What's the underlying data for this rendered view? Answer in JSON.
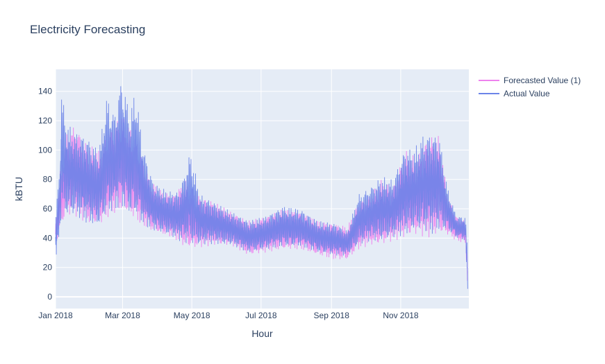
{
  "title": "Electricity Forecasting",
  "chart_data": {
    "type": "line",
    "title": "Electricity Forecasting",
    "xlabel": "Hour",
    "ylabel": "kBTU",
    "x_range": [
      "2018-01-01",
      "2018-12-31"
    ],
    "ylim": [
      -8,
      155
    ],
    "x_ticks": [
      {
        "date": "2018-01-01",
        "label": "Jan 2018"
      },
      {
        "date": "2018-03-01",
        "label": "Mar 2018"
      },
      {
        "date": "2018-05-01",
        "label": "May 2018"
      },
      {
        "date": "2018-07-01",
        "label": "Jul 2018"
      },
      {
        "date": "2018-09-01",
        "label": "Sep 2018"
      },
      {
        "date": "2018-11-01",
        "label": "Nov 2018"
      }
    ],
    "y_ticks": [
      0,
      20,
      40,
      60,
      80,
      100,
      120,
      140
    ],
    "grid": true,
    "legend_position": "top-right",
    "series": [
      {
        "name": "Forecasted Value (1)",
        "color": "#ee82ee",
        "points": [
          {
            "date": "2018-01-01",
            "low": 35,
            "high": 50
          },
          {
            "date": "2018-01-05",
            "low": 45,
            "high": 85
          },
          {
            "date": "2018-01-10",
            "low": 55,
            "high": 110
          },
          {
            "date": "2018-01-18",
            "low": 55,
            "high": 118
          },
          {
            "date": "2018-01-28",
            "low": 50,
            "high": 105
          },
          {
            "date": "2018-02-08",
            "low": 48,
            "high": 100
          },
          {
            "date": "2018-02-18",
            "low": 55,
            "high": 115
          },
          {
            "date": "2018-02-28",
            "low": 58,
            "high": 125
          },
          {
            "date": "2018-03-08",
            "low": 55,
            "high": 115
          },
          {
            "date": "2018-03-15",
            "low": 50,
            "high": 105
          },
          {
            "date": "2018-03-25",
            "low": 45,
            "high": 80
          },
          {
            "date": "2018-04-05",
            "low": 42,
            "high": 72
          },
          {
            "date": "2018-04-15",
            "low": 40,
            "high": 70
          },
          {
            "date": "2018-04-25",
            "low": 33,
            "high": 80
          },
          {
            "date": "2018-05-05",
            "low": 33,
            "high": 70
          },
          {
            "date": "2018-05-20",
            "low": 35,
            "high": 65
          },
          {
            "date": "2018-06-05",
            "low": 35,
            "high": 58
          },
          {
            "date": "2018-06-20",
            "low": 28,
            "high": 52
          },
          {
            "date": "2018-07-05",
            "low": 30,
            "high": 55
          },
          {
            "date": "2018-07-20",
            "low": 32,
            "high": 60
          },
          {
            "date": "2018-08-05",
            "low": 32,
            "high": 58
          },
          {
            "date": "2018-08-20",
            "low": 28,
            "high": 52
          },
          {
            "date": "2018-09-05",
            "low": 25,
            "high": 50
          },
          {
            "date": "2018-09-15",
            "low": 25,
            "high": 48
          },
          {
            "date": "2018-09-25",
            "low": 32,
            "high": 65
          },
          {
            "date": "2018-10-05",
            "low": 35,
            "high": 70
          },
          {
            "date": "2018-10-15",
            "low": 35,
            "high": 80
          },
          {
            "date": "2018-10-25",
            "low": 38,
            "high": 75
          },
          {
            "date": "2018-11-05",
            "low": 40,
            "high": 100
          },
          {
            "date": "2018-11-15",
            "low": 42,
            "high": 95
          },
          {
            "date": "2018-11-25",
            "low": 40,
            "high": 110
          },
          {
            "date": "2018-12-05",
            "low": 42,
            "high": 110
          },
          {
            "date": "2018-12-12",
            "low": 42,
            "high": 70
          },
          {
            "date": "2018-12-20",
            "low": 38,
            "high": 55
          },
          {
            "date": "2018-12-28",
            "low": 36,
            "high": 52
          },
          {
            "date": "2018-12-30",
            "low": 5,
            "high": 28
          }
        ]
      },
      {
        "name": "Actual Value",
        "color": "#6b84e8",
        "points": [
          {
            "date": "2018-01-01",
            "low": 20,
            "high": 55
          },
          {
            "date": "2018-01-05",
            "low": 45,
            "high": 95
          },
          {
            "date": "2018-01-06",
            "low": 55,
            "high": 144
          },
          {
            "date": "2018-01-10",
            "low": 55,
            "high": 120
          },
          {
            "date": "2018-01-18",
            "low": 55,
            "high": 112
          },
          {
            "date": "2018-01-28",
            "low": 50,
            "high": 110
          },
          {
            "date": "2018-02-08",
            "low": 48,
            "high": 100
          },
          {
            "date": "2018-02-15",
            "low": 55,
            "high": 137
          },
          {
            "date": "2018-02-22",
            "low": 58,
            "high": 125
          },
          {
            "date": "2018-02-28",
            "low": 60,
            "high": 150
          },
          {
            "date": "2018-03-08",
            "low": 55,
            "high": 125
          },
          {
            "date": "2018-03-12",
            "low": 55,
            "high": 143
          },
          {
            "date": "2018-03-20",
            "low": 48,
            "high": 100
          },
          {
            "date": "2018-03-28",
            "low": 45,
            "high": 78
          },
          {
            "date": "2018-04-10",
            "low": 42,
            "high": 72
          },
          {
            "date": "2018-04-20",
            "low": 38,
            "high": 72
          },
          {
            "date": "2018-04-30",
            "low": 35,
            "high": 100
          },
          {
            "date": "2018-05-08",
            "low": 35,
            "high": 70
          },
          {
            "date": "2018-05-20",
            "low": 36,
            "high": 65
          },
          {
            "date": "2018-06-05",
            "low": 35,
            "high": 58
          },
          {
            "date": "2018-06-20",
            "low": 30,
            "high": 52
          },
          {
            "date": "2018-07-05",
            "low": 32,
            "high": 55
          },
          {
            "date": "2018-07-20",
            "low": 34,
            "high": 62
          },
          {
            "date": "2018-08-05",
            "low": 34,
            "high": 60
          },
          {
            "date": "2018-08-20",
            "low": 30,
            "high": 52
          },
          {
            "date": "2018-09-05",
            "low": 28,
            "high": 50
          },
          {
            "date": "2018-09-15",
            "low": 28,
            "high": 45
          },
          {
            "date": "2018-09-25",
            "low": 35,
            "high": 70
          },
          {
            "date": "2018-10-05",
            "low": 38,
            "high": 75
          },
          {
            "date": "2018-10-15",
            "low": 38,
            "high": 82
          },
          {
            "date": "2018-10-25",
            "low": 40,
            "high": 80
          },
          {
            "date": "2018-11-05",
            "low": 42,
            "high": 102
          },
          {
            "date": "2018-11-12",
            "low": 45,
            "high": 100
          },
          {
            "date": "2018-11-20",
            "low": 45,
            "high": 110
          },
          {
            "date": "2018-11-28",
            "low": 42,
            "high": 112
          },
          {
            "date": "2018-12-05",
            "low": 45,
            "high": 110
          },
          {
            "date": "2018-12-12",
            "low": 45,
            "high": 75
          },
          {
            "date": "2018-12-20",
            "low": 40,
            "high": 55
          },
          {
            "date": "2018-12-28",
            "low": 38,
            "high": 55
          },
          {
            "date": "2018-12-30",
            "low": 0,
            "high": 30
          }
        ]
      }
    ]
  }
}
